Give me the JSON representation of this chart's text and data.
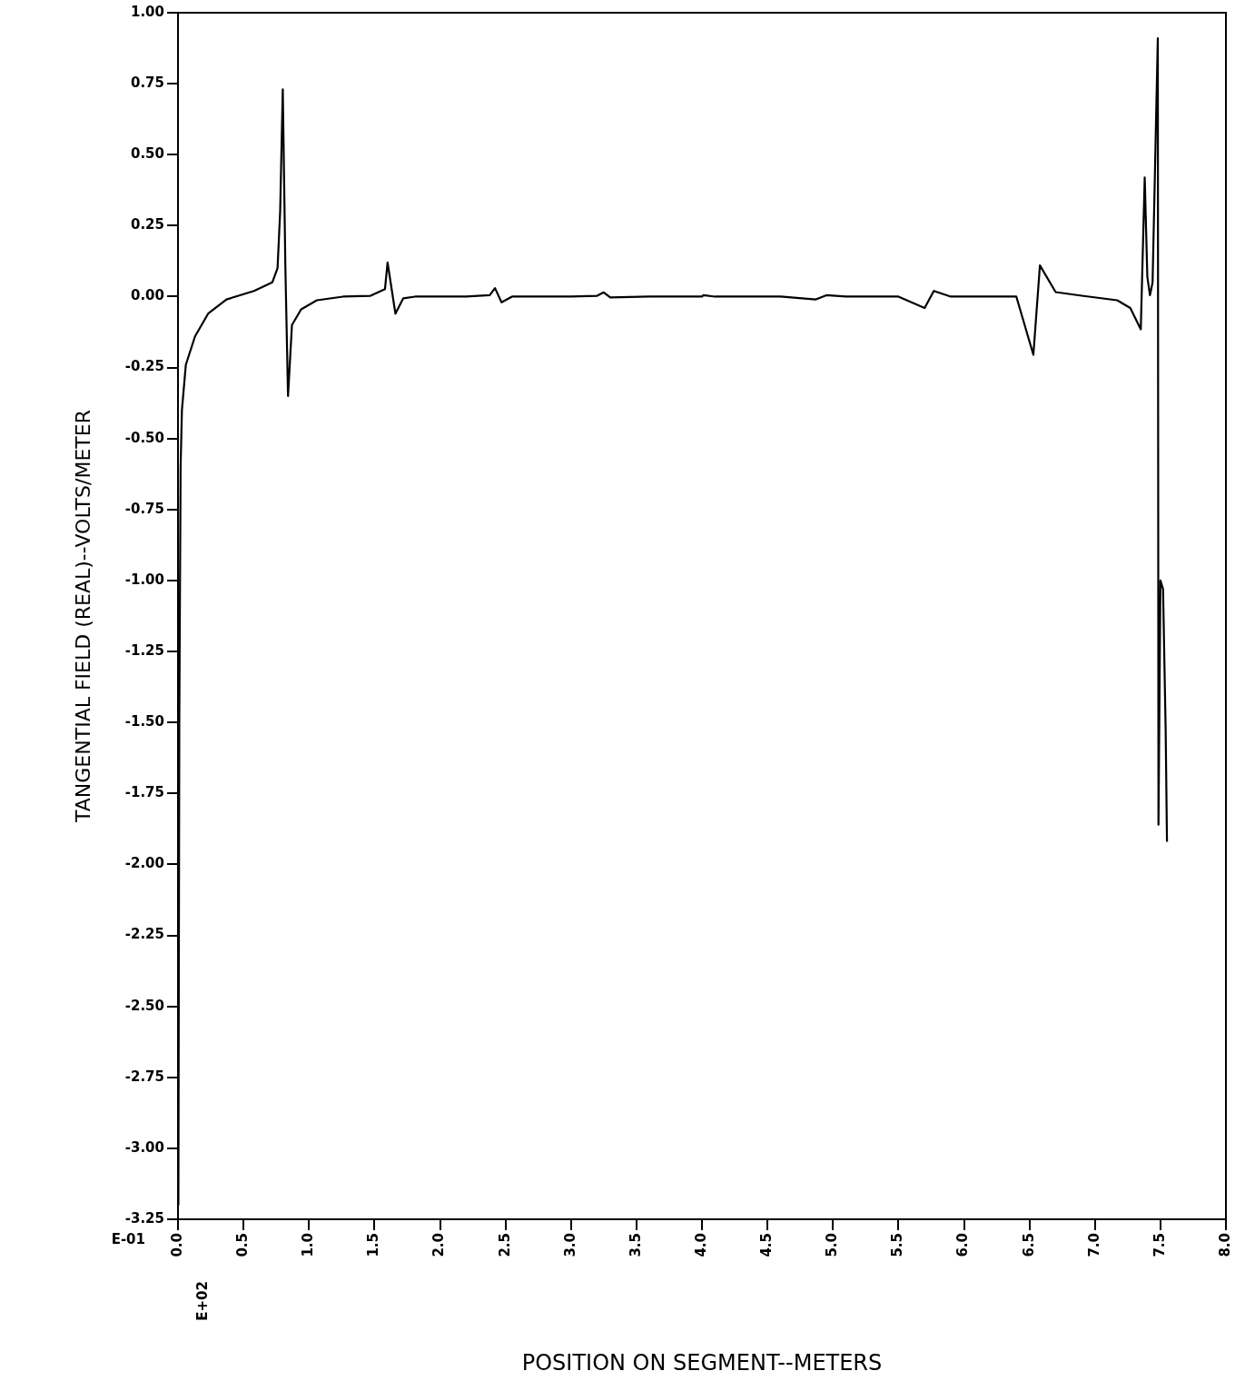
{
  "chart_data": {
    "type": "line",
    "xlabel": "POSITION ON SEGMENT--METERS",
    "ylabel": "TANGENTIAL FIELD (REAL)--VOLTS/METER",
    "annotations": [
      "E-01",
      "E+02"
    ],
    "series": [
      {
        "color": "#000000",
        "x": [
          0.003,
          0.01,
          0.02,
          0.03,
          0.06,
          0.13,
          0.23,
          0.37,
          0.58,
          0.72,
          0.76,
          0.78,
          0.8,
          0.82,
          0.84,
          0.87,
          0.94,
          1.06,
          1.26,
          1.47,
          1.58,
          1.6,
          1.66,
          1.72,
          1.81,
          2.2,
          2.38,
          2.42,
          2.47,
          2.55,
          3.0,
          3.2,
          3.25,
          3.3,
          3.6,
          4.0,
          4.01,
          4.1,
          4.6,
          4.87,
          4.95,
          5.1,
          5.5,
          5.7,
          5.77,
          5.9,
          6.4,
          6.53,
          6.58,
          6.7,
          6.9,
          7.17,
          7.27,
          7.35,
          7.38,
          7.4,
          7.42,
          7.44,
          7.48,
          7.485,
          7.5,
          7.52,
          7.54,
          7.55
        ],
        "values": [
          -3.2,
          -1.5,
          -0.6,
          -0.4,
          -0.24,
          -0.14,
          -0.06,
          -0.01,
          0.02,
          0.05,
          0.1,
          0.3,
          0.73,
          0.1,
          -0.35,
          -0.1,
          -0.045,
          -0.013,
          0.0,
          0.003,
          0.026,
          0.12,
          -0.06,
          -0.006,
          0.0,
          0.0,
          0.005,
          0.03,
          -0.02,
          0.0,
          0.0,
          0.003,
          0.015,
          -0.003,
          0.0,
          0.0,
          0.005,
          0.0,
          0.0,
          -0.01,
          0.005,
          0.0,
          0.0,
          -0.04,
          0.02,
          0.0,
          0.0,
          -0.205,
          0.11,
          0.016,
          0.003,
          -0.013,
          -0.04,
          -0.115,
          0.42,
          0.07,
          0.005,
          0.05,
          0.91,
          -1.86,
          -1.0,
          -1.03,
          -1.53,
          -1.92
        ]
      }
    ],
    "xlim": [
      0,
      8
    ],
    "xticks": [
      {
        "value": 0,
        "label": "0.0"
      },
      {
        "value": 0.5,
        "label": "0.5"
      },
      {
        "value": 1,
        "label": "1.0"
      },
      {
        "value": 1.5,
        "label": "1.5"
      },
      {
        "value": 2,
        "label": "2.0"
      },
      {
        "value": 2.5,
        "label": "2.5"
      },
      {
        "value": 3,
        "label": "3.0"
      },
      {
        "value": 3.5,
        "label": "3.5"
      },
      {
        "value": 4,
        "label": "4.0"
      },
      {
        "value": 4.5,
        "label": "4.5"
      },
      {
        "value": 5,
        "label": "5.0"
      },
      {
        "value": 5.5,
        "label": "5.5"
      },
      {
        "value": 6,
        "label": "6.0"
      },
      {
        "value": 6.5,
        "label": "6.5"
      },
      {
        "value": 7,
        "label": "7.0"
      },
      {
        "value": 7.5,
        "label": "7.5"
      },
      {
        "value": 8,
        "label": "8.0"
      }
    ],
    "ylim": [
      -3.25,
      1
    ],
    "yticks": [
      {
        "value": 1,
        "label": "1.00"
      },
      {
        "value": 0.75,
        "label": "0.75"
      },
      {
        "value": 0.5,
        "label": "0.50"
      },
      {
        "value": 0.25,
        "label": "0.25"
      },
      {
        "value": 0,
        "label": "0.00"
      },
      {
        "value": -0.25,
        "label": "-0.25"
      },
      {
        "value": -0.5,
        "label": "-0.50"
      },
      {
        "value": -0.75,
        "label": "-0.75"
      },
      {
        "value": -1,
        "label": "-1.00"
      },
      {
        "value": -1.25,
        "label": "-1.25"
      },
      {
        "value": -1.5,
        "label": "-1.50"
      },
      {
        "value": -1.75,
        "label": "-1.75"
      },
      {
        "value": -2,
        "label": "-2.00"
      },
      {
        "value": -2.25,
        "label": "-2.25"
      },
      {
        "value": -2.5,
        "label": "-2.50"
      },
      {
        "value": -2.75,
        "label": "-2.75"
      },
      {
        "value": -3,
        "label": "-3.00"
      },
      {
        "value": -3.25,
        "label": "-3.25"
      }
    ],
    "grid": false,
    "legend": false,
    "marker": "none",
    "line_style": "solid"
  }
}
